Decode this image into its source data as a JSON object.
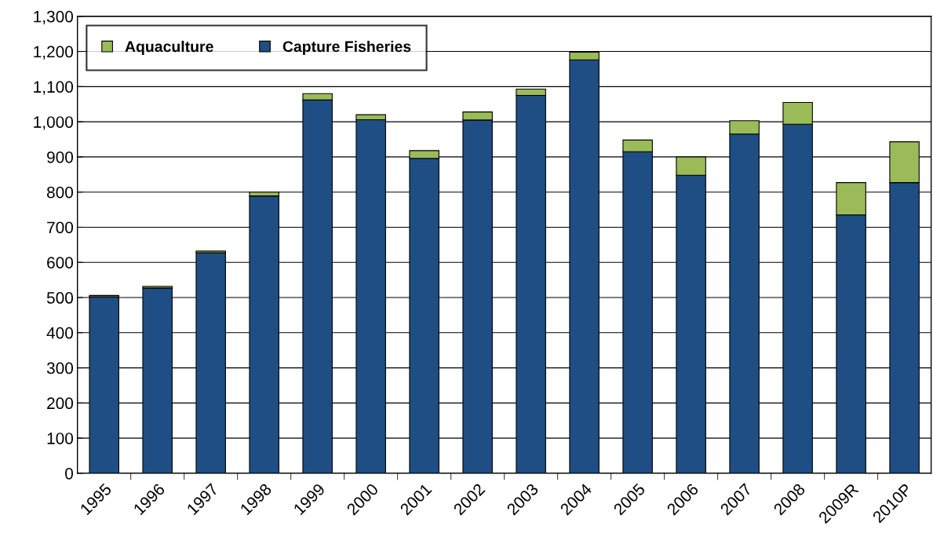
{
  "chart_data": {
    "type": "bar",
    "stacked": true,
    "categories": [
      "1995",
      "1996",
      "1997",
      "1998",
      "1999",
      "2000",
      "2001",
      "2002",
      "2003",
      "2004",
      "2005",
      "2006",
      "2007",
      "2008",
      "2009R",
      "2010P"
    ],
    "series": [
      {
        "name": "Capture Fisheries",
        "color": "#1f4e85",
        "values": [
          502,
          527,
          627,
          789,
          1062,
          1006,
          896,
          1005,
          1075,
          1176,
          915,
          848,
          965,
          993,
          735,
          827
        ]
      },
      {
        "name": "Aquaculture",
        "color": "#9bbb59",
        "values": [
          4,
          5,
          5,
          11,
          18,
          14,
          22,
          23,
          18,
          22,
          33,
          52,
          38,
          62,
          92,
          116
        ]
      }
    ],
    "ylim": [
      0,
      1300
    ],
    "yticks": [
      0,
      {
        "value": 100,
        "label": "100"
      },
      {
        "value": 200,
        "label": "200"
      },
      {
        "value": 300,
        "label": "300"
      },
      {
        "value": 400,
        "label": "400"
      },
      {
        "value": 500,
        "label": "500"
      },
      {
        "value": 600,
        "label": "600"
      },
      {
        "value": 700,
        "label": "700"
      },
      {
        "value": 800,
        "label": "800"
      },
      {
        "value": 900,
        "label": "900"
      },
      {
        "value": 1000,
        "label": "1,000"
      },
      {
        "value": 1100,
        "label": "1,100"
      },
      {
        "value": 1200,
        "label": "1,200"
      },
      {
        "value": 1300,
        "label": "1,300"
      }
    ],
    "grid": "y",
    "legend": "top left"
  }
}
